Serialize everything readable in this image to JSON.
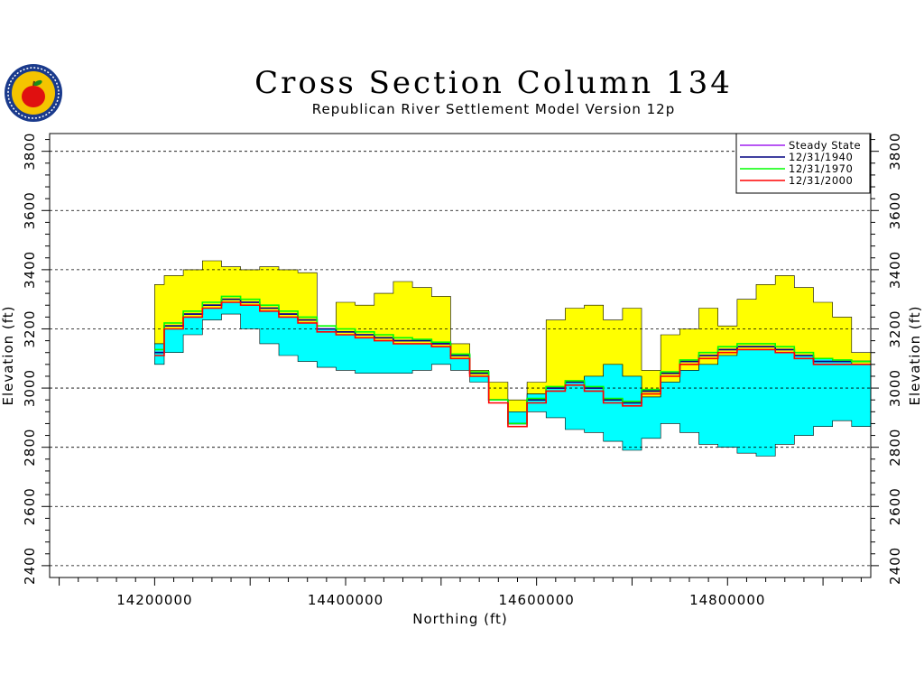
{
  "header": {
    "title": "Cross Section Column 134",
    "subtitle": "Republican River Settlement Model Version 12p"
  },
  "logo": {
    "icon": "apple-seal-icon",
    "colors": {
      "ring": "#1a3a8c",
      "inner": "#f5c400",
      "apple": "#e01010",
      "leaf": "#1a8c1a"
    }
  },
  "chart_data": {
    "type": "area",
    "title": "Cross Section Column 134",
    "subtitle": "Republican River Settlement Model Version 12p",
    "xlabel": "Northing (ft)",
    "ylabel": "Elevation (ft)",
    "xlim": [
      14090000,
      14950000
    ],
    "ylim": [
      2360,
      3860
    ],
    "x_ticks": [
      14200000,
      14400000,
      14600000,
      14800000
    ],
    "y_ticks": [
      2400,
      2600,
      2800,
      3000,
      3200,
      3400,
      3600,
      3800
    ],
    "grid": true,
    "legend_position": "top-right",
    "colors": {
      "top_layer": "#ffff00",
      "bottom_layer": "#00ffff",
      "background": "#ffffff"
    },
    "x": [
      14200000,
      14220000,
      14240000,
      14260000,
      14280000,
      14300000,
      14320000,
      14340000,
      14360000,
      14380000,
      14400000,
      14420000,
      14440000,
      14460000,
      14480000,
      14500000,
      14520000,
      14540000,
      14560000,
      14580000,
      14600000,
      14620000,
      14640000,
      14660000,
      14680000,
      14700000,
      14720000,
      14740000,
      14760000,
      14780000,
      14800000,
      14820000,
      14840000,
      14860000,
      14880000,
      14900000,
      14920000,
      14940000
    ],
    "land_surface": [
      3350,
      3380,
      3400,
      3430,
      3410,
      3400,
      3410,
      3400,
      3390,
      3180,
      3290,
      3280,
      3320,
      3360,
      3340,
      3310,
      3150,
      3060,
      3020,
      2960,
      3020,
      3230,
      3270,
      3280,
      3230,
      3270,
      3060,
      3180,
      3200,
      3270,
      3210,
      3300,
      3350,
      3380,
      3340,
      3290,
      3240,
      3120
    ],
    "layer_boundary": [
      3150,
      3200,
      3240,
      3270,
      3290,
      3280,
      3260,
      3240,
      3220,
      3200,
      3180,
      3170,
      3160,
      3150,
      3150,
      3140,
      3100,
      3040,
      2960,
      2920,
      2980,
      3000,
      3020,
      3040,
      3080,
      3040,
      2970,
      3020,
      3060,
      3080,
      3110,
      3130,
      3130,
      3120,
      3110,
      3100,
      3090,
      3080
    ],
    "aquifer_base": [
      3080,
      3120,
      3180,
      3230,
      3250,
      3200,
      3150,
      3110,
      3090,
      3070,
      3060,
      3050,
      3050,
      3050,
      3060,
      3080,
      3060,
      3020,
      2960,
      2880,
      2920,
      2900,
      2860,
      2850,
      2820,
      2790,
      2830,
      2880,
      2850,
      2810,
      2800,
      2780,
      2770,
      2810,
      2840,
      2870,
      2890,
      2870
    ],
    "series": [
      {
        "name": "Steady State",
        "color": "#a020f0",
        "values": [
          3120,
          3210,
          3250,
          3280,
          3300,
          3290,
          3270,
          3250,
          3230,
          3200,
          3190,
          3180,
          3170,
          3160,
          3160,
          3150,
          3110,
          3050,
          2960,
          2880,
          2960,
          3000,
          3020,
          3000,
          2960,
          2950,
          2990,
          3050,
          3090,
          3110,
          3130,
          3140,
          3140,
          3130,
          3110,
          3090,
          3090,
          3090
        ]
      },
      {
        "name": "12/31/1940",
        "color": "#000080",
        "values": [
          3120,
          3210,
          3250,
          3280,
          3300,
          3290,
          3270,
          3250,
          3230,
          3200,
          3190,
          3180,
          3170,
          3160,
          3160,
          3150,
          3110,
          3050,
          2960,
          2880,
          2960,
          3000,
          3020,
          3000,
          2960,
          2950,
          2990,
          3050,
          3090,
          3110,
          3130,
          3140,
          3140,
          3130,
          3110,
          3090,
          3090,
          3090
        ]
      },
      {
        "name": "12/31/1970",
        "color": "#00ff00",
        "values": [
          3130,
          3220,
          3260,
          3290,
          3310,
          3300,
          3280,
          3260,
          3240,
          3210,
          3200,
          3190,
          3180,
          3170,
          3165,
          3155,
          3115,
          3055,
          2960,
          2880,
          2965,
          3005,
          3025,
          3005,
          2965,
          2955,
          2995,
          3055,
          3095,
          3120,
          3140,
          3150,
          3150,
          3140,
          3120,
          3100,
          3095,
          3090
        ]
      },
      {
        "name": "12/31/2000",
        "color": "#ff0000",
        "values": [
          3110,
          3200,
          3240,
          3270,
          3290,
          3280,
          3260,
          3240,
          3220,
          3190,
          3180,
          3170,
          3160,
          3150,
          3150,
          3140,
          3100,
          3040,
          2950,
          2870,
          2950,
          2990,
          3010,
          2990,
          2950,
          2940,
          2980,
          3040,
          3080,
          3100,
          3120,
          3130,
          3130,
          3120,
          3100,
          3080,
          3080,
          3080
        ]
      }
    ]
  }
}
